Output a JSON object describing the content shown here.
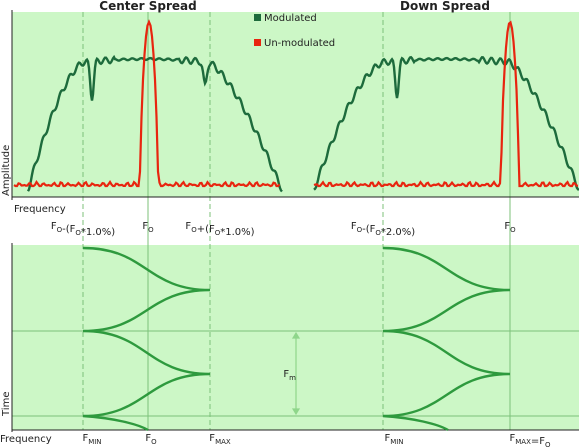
{
  "titles": [
    "Center Spread",
    "Down Spread"
  ],
  "legend": [
    "Modulated",
    "Un-modulated"
  ],
  "axes": {
    "amplitude": "Amplitude",
    "frequency_top": "Frequency",
    "time": "Time",
    "frequency_bottom": "Frequency"
  },
  "top_labels": [
    [
      "F",
      {
        "sub": "O"
      },
      "-(F",
      {
        "sub": "O"
      },
      "*1.0%)"
    ],
    [
      "F",
      {
        "sub": "O"
      }
    ],
    [
      "F",
      {
        "sub": "O"
      },
      "+(F",
      {
        "sub": "O"
      },
      "*1.0%)"
    ],
    [
      "F",
      {
        "sub": "O"
      },
      "-(F",
      {
        "sub": "O"
      },
      "*2.0%)"
    ],
    [
      "F",
      {
        "sub": "O"
      }
    ]
  ],
  "bottom_labels": [
    [
      "F",
      {
        "sub": "MIN"
      }
    ],
    [
      "F",
      {
        "sub": "O"
      }
    ],
    [
      "F",
      {
        "sub": "MAX"
      }
    ],
    [
      "F",
      {
        "sub": "MIN"
      }
    ],
    [
      "F",
      {
        "sub": "MAX"
      },
      "=F",
      {
        "sub": "O"
      }
    ]
  ],
  "period_label": [
    "F",
    {
      "sub": "m"
    }
  ]
}
